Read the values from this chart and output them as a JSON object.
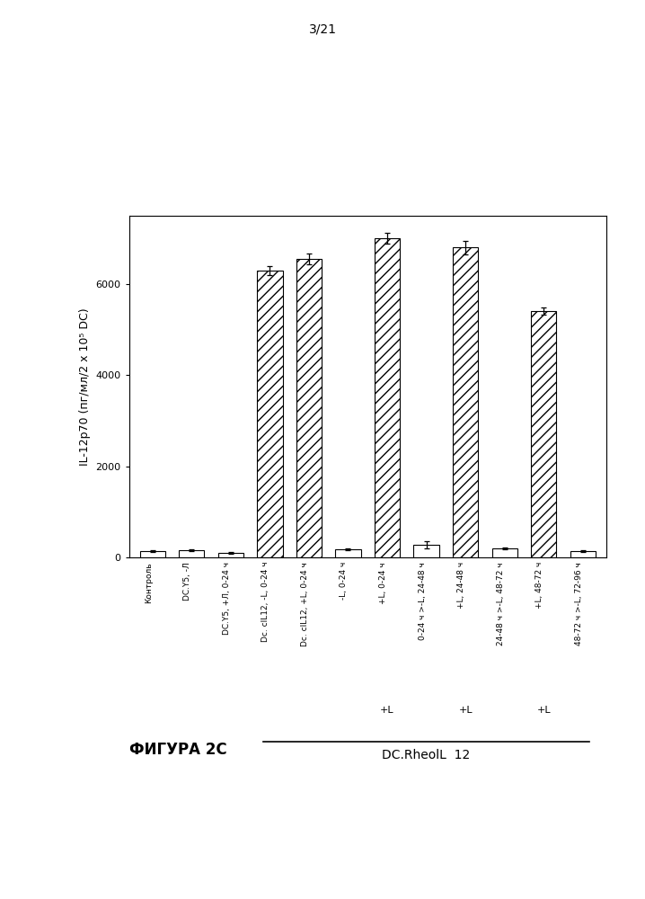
{
  "categories": [
    "Контроль",
    "DC.Υ5, -Л",
    "DC.Υ5, +Л, 0-24 ч",
    "Dc. cIL12, -L, 0-24 ч",
    "Dc. cIL12, +L, 0-24 ч",
    "-L, 0-24 ч",
    "+L, 0-24 ч",
    "0-24 ч >-L, 24-48 ч",
    "+L, 24-48 ч",
    "24-48 ч >-L, 48-72 ч",
    "+L, 48-72 ч",
    "48-72 ч >-L, 72-96 ч"
  ],
  "values": [
    130,
    150,
    100,
    6300,
    6550,
    180,
    7000,
    280,
    6800,
    190,
    5400,
    130
  ],
  "errors": [
    20,
    20,
    15,
    100,
    120,
    20,
    120,
    80,
    150,
    20,
    80,
    20
  ],
  "hatched": [
    false,
    false,
    false,
    true,
    true,
    false,
    true,
    false,
    true,
    false,
    true,
    false
  ],
  "ylabel": "IL-12p70 (пг/мл/2 х 10⁵ DC)",
  "ylim": [
    0,
    7500
  ],
  "yticks": [
    0,
    2000,
    4000,
    6000
  ],
  "page_label": "3/21",
  "figure_label": "ФИГУРА 2С",
  "dc_label": "DC.RheolL  12",
  "plus_L_bar_indices": [
    6,
    8,
    10
  ],
  "plus_L_label": "+L",
  "bar_color": "white",
  "hatch_pattern": "///",
  "bar_edge_color": "black",
  "background_color": "white",
  "tick_fontsize": 8,
  "label_fontsize": 9,
  "bar_width": 0.65
}
